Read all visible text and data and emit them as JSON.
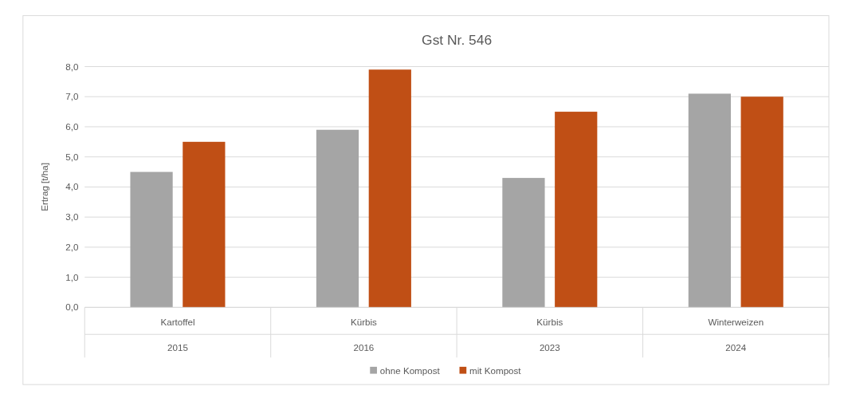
{
  "chart_data": {
    "type": "bar",
    "title": "Gst Nr. 546",
    "ylabel": "Ertrag [t/ha]",
    "categories": [
      "Kartoffel",
      "Kürbis",
      "Kürbis",
      "Winterweizen"
    ],
    "annotations": [
      "2015",
      "2016",
      "2023",
      "2024"
    ],
    "series": [
      {
        "name": "ohne Kompost",
        "color": "#a5a5a5",
        "values": [
          4.5,
          5.9,
          4.3,
          7.1
        ]
      },
      {
        "name": "mit Kompost",
        "color": "#c04f15",
        "values": [
          5.5,
          7.9,
          6.5,
          7.0
        ]
      }
    ],
    "ylim": [
      0,
      8
    ],
    "yticks": [
      {
        "value": 0,
        "label": "0,0"
      },
      {
        "value": 1,
        "label": "1,0"
      },
      {
        "value": 2,
        "label": "2,0"
      },
      {
        "value": 3,
        "label": "3,0"
      },
      {
        "value": 4,
        "label": "4,0"
      },
      {
        "value": 5,
        "label": "5,0"
      },
      {
        "value": 6,
        "label": "6,0"
      },
      {
        "value": 7,
        "label": "7,0"
      },
      {
        "value": 8,
        "label": "8,0"
      }
    ],
    "grid": "y",
    "legend": "bottom"
  }
}
